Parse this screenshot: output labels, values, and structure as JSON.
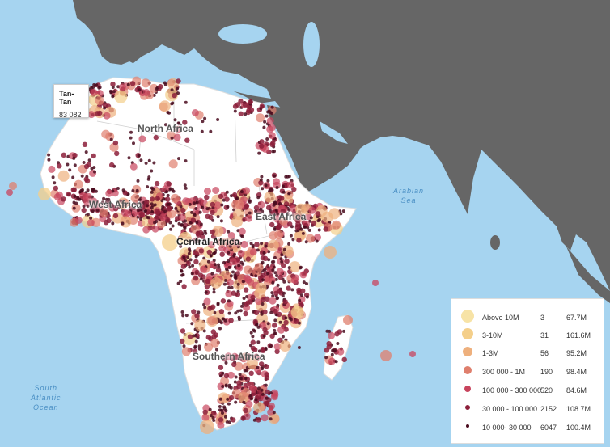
{
  "regions": {
    "north_africa": "North Africa",
    "west_africa": "West Africa",
    "east_africa": "East Africa",
    "central_africa": "Central Africa",
    "southern_africa": "Southern Africa"
  },
  "water": {
    "arabian_sea": [
      "Arabian",
      "Sea"
    ],
    "south_atlantic": [
      "South",
      "Atlantic",
      "Ocean"
    ]
  },
  "tooltip": {
    "name": "Tan-Tan",
    "value": "83 082"
  },
  "legend": {
    "rows": [
      {
        "label": "Above 10M",
        "count": "3",
        "population": "67.7M",
        "color": "#f7e3a6"
      },
      {
        "label": "3-10M",
        "count": "31",
        "population": "161.6M",
        "color": "#f4cf8a"
      },
      {
        "label": "1-3M",
        "count": "56",
        "population": "95.2M",
        "color": "#eeb07d"
      },
      {
        "label": "300 000 - 1M",
        "count": "190",
        "population": "98.4M",
        "color": "#df7f6d"
      },
      {
        "label": "100 000 - 300 000",
        "count": "520",
        "population": "84.6M",
        "color": "#c8445d"
      },
      {
        "label": "30 000 - 100 000",
        "count": "2152",
        "population": "108.7M",
        "color": "#8c1f3a"
      },
      {
        "label": "10 000- 30 000",
        "count": "6047",
        "population": "100.4M",
        "color": "#4a0c1e"
      }
    ]
  },
  "colors": {
    "ocean": "#a6d4f0",
    "africa": "#ffffff",
    "other_land": "#666666",
    "border": "#cccccc"
  }
}
